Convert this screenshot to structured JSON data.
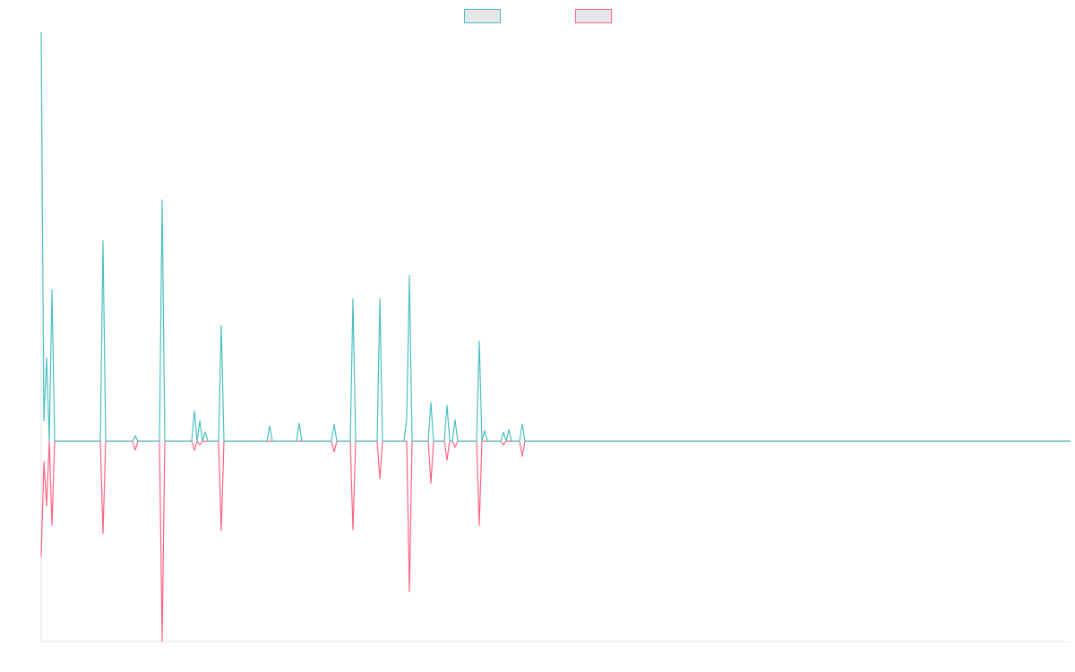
{
  "chart_data": {
    "type": "line",
    "legend": "top",
    "grid": false,
    "x": [
      0,
      1,
      2,
      3,
      4,
      5,
      22,
      23,
      24,
      34,
      35,
      36,
      44,
      45,
      46,
      56,
      57,
      58,
      59,
      60,
      61,
      62,
      66,
      67,
      68,
      84,
      85,
      86,
      95,
      96,
      97,
      108,
      109,
      110,
      115,
      116,
      117,
      125,
      126,
      127,
      135,
      136,
      137,
      138,
      144,
      145,
      146,
      150,
      151,
      152,
      153,
      154,
      155,
      162,
      163,
      164,
      165,
      166,
      171,
      172,
      173,
      174,
      175,
      178,
      179,
      180,
      383
    ],
    "xlim": [
      0,
      383
    ],
    "ylim": [
      -49,
      100
    ],
    "series": [
      {
        "color": "#4bc0c0",
        "values": [
          100,
          5,
          20.4,
          0,
          37,
          0,
          0,
          49,
          0,
          0,
          1.3,
          0,
          0,
          59,
          0,
          0,
          7.4,
          0,
          5,
          0,
          2.2,
          0,
          0,
          28.3,
          0,
          0,
          3.7,
          0,
          0,
          4.4,
          0,
          0,
          4.2,
          0,
          0,
          34.8,
          0,
          0,
          34.8,
          0,
          0,
          5.5,
          40.5,
          0,
          0,
          9.4,
          0,
          0,
          8.8,
          0,
          0,
          5.3,
          0,
          0,
          24.5,
          0,
          2.6,
          0,
          0,
          2.2,
          0,
          2.8,
          0,
          0,
          4.2,
          0,
          0
        ]
      },
      {
        "color": "#ff6384",
        "values": [
          -28.3,
          -5,
          -15.8,
          0,
          -20.6,
          0,
          0,
          -22.6,
          0,
          0,
          -2.2,
          0,
          0,
          -48.9,
          0,
          0,
          -2.2,
          0,
          -0.9,
          0,
          0,
          0,
          0,
          -21.9,
          0,
          0,
          0,
          0,
          0,
          0,
          0,
          0,
          -2.6,
          0,
          0,
          -21.7,
          0,
          0,
          -9.2,
          0,
          0,
          0,
          -36.8,
          0,
          0,
          -10.3,
          0,
          0,
          -4.6,
          0,
          0,
          -1.5,
          0,
          0,
          -20.6,
          0,
          0,
          0,
          0,
          -0.9,
          0,
          0,
          0,
          0,
          -3.7,
          0,
          0
        ]
      }
    ]
  }
}
